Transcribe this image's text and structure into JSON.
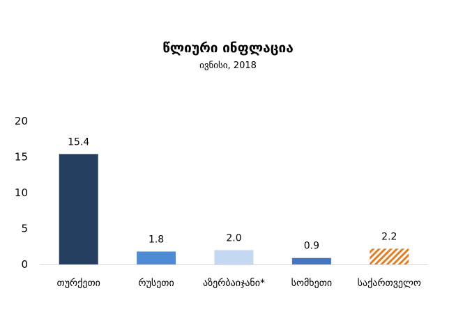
{
  "chart_data": {
    "type": "bar",
    "title": "წლიური ინფლაცია",
    "subtitle": "ივნისი, 2018",
    "categories": [
      "თურქეთი",
      "რუსეთი",
      "აზერბაიჯანი*",
      "სომხეთი",
      "საქართველო"
    ],
    "values": [
      15.4,
      1.8,
      2.0,
      0.9,
      2.2
    ],
    "value_labels": [
      "15.4",
      "1.8",
      "2.0",
      "0.9",
      "2.2"
    ],
    "bar_colors": [
      "#253f60",
      "#4f8ad4",
      "#c5d8f1",
      "#4675c2",
      "#e57c20"
    ],
    "bar_patterns": [
      "solid",
      "solid",
      "solid",
      "solid",
      "diagonal-hatch"
    ],
    "y_ticks": [
      "0",
      "5",
      "10",
      "15",
      "20"
    ],
    "ylim": [
      0,
      20
    ],
    "grid": false,
    "legend": "none"
  }
}
